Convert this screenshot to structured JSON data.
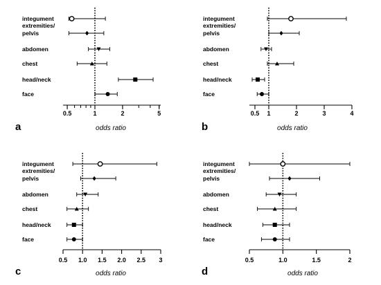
{
  "chart_data": [
    {
      "type": "forest",
      "panel_label": "a",
      "xlabel": "odds ratio",
      "xscale": "log",
      "xlim": [
        0.45,
        5.2
      ],
      "reference_line": 1,
      "ticks": [
        0.5,
        1,
        2,
        5
      ],
      "tick_labels": [
        "0.5",
        "1",
        "2",
        "5"
      ],
      "rows": [
        {
          "label": "integument",
          "marker": "open-circle",
          "or": 0.56,
          "ci": [
            0.52,
            1.3
          ]
        },
        {
          "label": "extremities/\npelvis",
          "marker": "diamond",
          "or": 0.82,
          "ci": [
            0.52,
            1.25
          ]
        },
        {
          "label": "abdomen",
          "marker": "triangle-down",
          "or": 1.1,
          "ci": [
            0.85,
            1.45
          ]
        },
        {
          "label": "chest",
          "marker": "triangle-up",
          "or": 0.93,
          "ci": [
            0.64,
            1.35
          ]
        },
        {
          "label": "head/neck",
          "marker": "square",
          "or": 2.75,
          "ci": [
            1.8,
            4.3
          ]
        },
        {
          "label": "face",
          "marker": "circle",
          "or": 1.38,
          "ci": [
            1.0,
            1.75
          ]
        }
      ]
    },
    {
      "type": "forest",
      "panel_label": "b",
      "xlabel": "odds ratio",
      "xscale": "linear",
      "xlim": [
        0.3,
        4.0
      ],
      "reference_line": 1,
      "ticks": [
        0.5,
        1,
        2,
        3,
        4
      ],
      "tick_labels": [
        "0.5",
        "1",
        "2",
        "3",
        "4"
      ],
      "rows": [
        {
          "label": "integument",
          "marker": "open-circle",
          "or": 1.8,
          "ci": [
            0.95,
            3.8
          ]
        },
        {
          "label": "extremities/\npelvis",
          "marker": "diamond",
          "or": 1.45,
          "ci": [
            1.0,
            2.1
          ]
        },
        {
          "label": "abdomen",
          "marker": "triangle-down",
          "or": 0.9,
          "ci": [
            0.72,
            1.1
          ]
        },
        {
          "label": "chest",
          "marker": "triangle-up",
          "or": 1.3,
          "ci": [
            0.95,
            1.9
          ]
        },
        {
          "label": "head/neck",
          "marker": "square",
          "or": 0.6,
          "ci": [
            0.4,
            0.85
          ]
        },
        {
          "label": "face",
          "marker": "circle",
          "or": 0.75,
          "ci": [
            0.58,
            1.0
          ]
        }
      ]
    },
    {
      "type": "forest",
      "panel_label": "c",
      "xlabel": "odds ratio",
      "xscale": "linear",
      "xlim": [
        0.5,
        3.0
      ],
      "reference_line": 1,
      "ticks": [
        0.5,
        1.0,
        1.5,
        2.0,
        2.5,
        3.0
      ],
      "tick_labels": [
        "0.5",
        "1.0",
        "1.5",
        "2.0",
        "2.5",
        "3"
      ],
      "rows": [
        {
          "label": "integument",
          "marker": "open-circle",
          "or": 1.45,
          "ci": [
            0.75,
            2.9
          ]
        },
        {
          "label": "extremities/\npelvis",
          "marker": "diamond",
          "or": 1.3,
          "ci": [
            0.95,
            1.85
          ]
        },
        {
          "label": "abdomen",
          "marker": "triangle-down",
          "or": 1.07,
          "ci": [
            0.85,
            1.4
          ]
        },
        {
          "label": "chest",
          "marker": "triangle-up",
          "or": 0.85,
          "ci": [
            0.6,
            1.15
          ]
        },
        {
          "label": "head/neck",
          "marker": "square",
          "or": 0.78,
          "ci": [
            0.6,
            1.0
          ]
        },
        {
          "label": "face",
          "marker": "circle",
          "or": 0.78,
          "ci": [
            0.6,
            1.0
          ]
        }
      ]
    },
    {
      "type": "forest",
      "panel_label": "d",
      "xlabel": "odds ratio",
      "xscale": "linear",
      "xlim": [
        0.5,
        2.0
      ],
      "reference_line": 1,
      "ticks": [
        0.5,
        1.0,
        1.5,
        2.0
      ],
      "tick_labels": [
        "0.5",
        "1.0",
        "1.5",
        "2"
      ],
      "rows": [
        {
          "label": "integument",
          "marker": "open-circle",
          "or": 1.0,
          "ci": [
            0.5,
            2.0
          ]
        },
        {
          "label": "extremities/\npelvis",
          "marker": "diamond",
          "or": 1.1,
          "ci": [
            0.8,
            1.55
          ]
        },
        {
          "label": "abdomen",
          "marker": "triangle-down",
          "or": 0.95,
          "ci": [
            0.75,
            1.2
          ]
        },
        {
          "label": "chest",
          "marker": "triangle-up",
          "or": 0.88,
          "ci": [
            0.62,
            1.2
          ]
        },
        {
          "label": "head/neck",
          "marker": "square",
          "or": 0.88,
          "ci": [
            0.7,
            1.1
          ]
        },
        {
          "label": "face",
          "marker": "circle",
          "or": 0.88,
          "ci": [
            0.68,
            1.1
          ]
        }
      ]
    }
  ]
}
